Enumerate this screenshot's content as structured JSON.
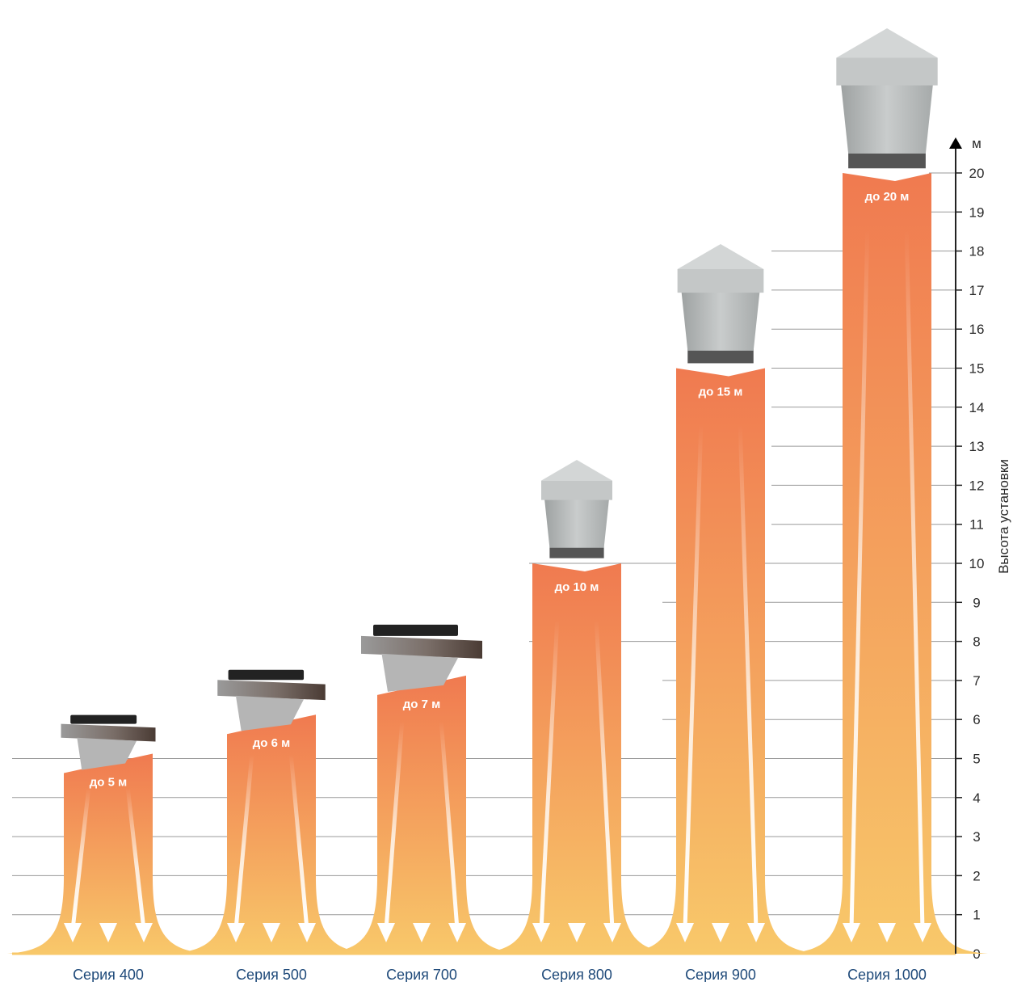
{
  "chart_data": {
    "type": "bar",
    "categories": [
      "Серия 400",
      "Серия 500",
      "Серия 700",
      "Серия 800",
      "Серия 900",
      "Серия 1000"
    ],
    "values": [
      5,
      6,
      7,
      10,
      15,
      20
    ],
    "data_labels": [
      "до 5 м",
      "до 6 м",
      "до 7 м",
      "до 10 м",
      "до 15 м",
      "до 20 м"
    ],
    "ylabel": "Высота установки",
    "y_unit": "м",
    "y_ticks": [
      0,
      1,
      2,
      3,
      4,
      5,
      6,
      7,
      8,
      9,
      10,
      11,
      12,
      13,
      14,
      15,
      16,
      17,
      18,
      19,
      20
    ],
    "ylim": [
      0,
      20
    ],
    "grid": true,
    "axis_position": "right",
    "unit_kind": [
      "heater",
      "heater",
      "heater",
      "duct",
      "duct",
      "duct"
    ],
    "colors": {
      "flow_top": "#f07a50",
      "flow_bottom": "#f8c86a",
      "arrow": "#ffffff",
      "grid": "#9a9a9a",
      "category_text": "#1f4a7a",
      "heater_body": "#8a8a8a",
      "heater_dark": "#4a3b34",
      "duct": "#b9bcbc"
    }
  }
}
